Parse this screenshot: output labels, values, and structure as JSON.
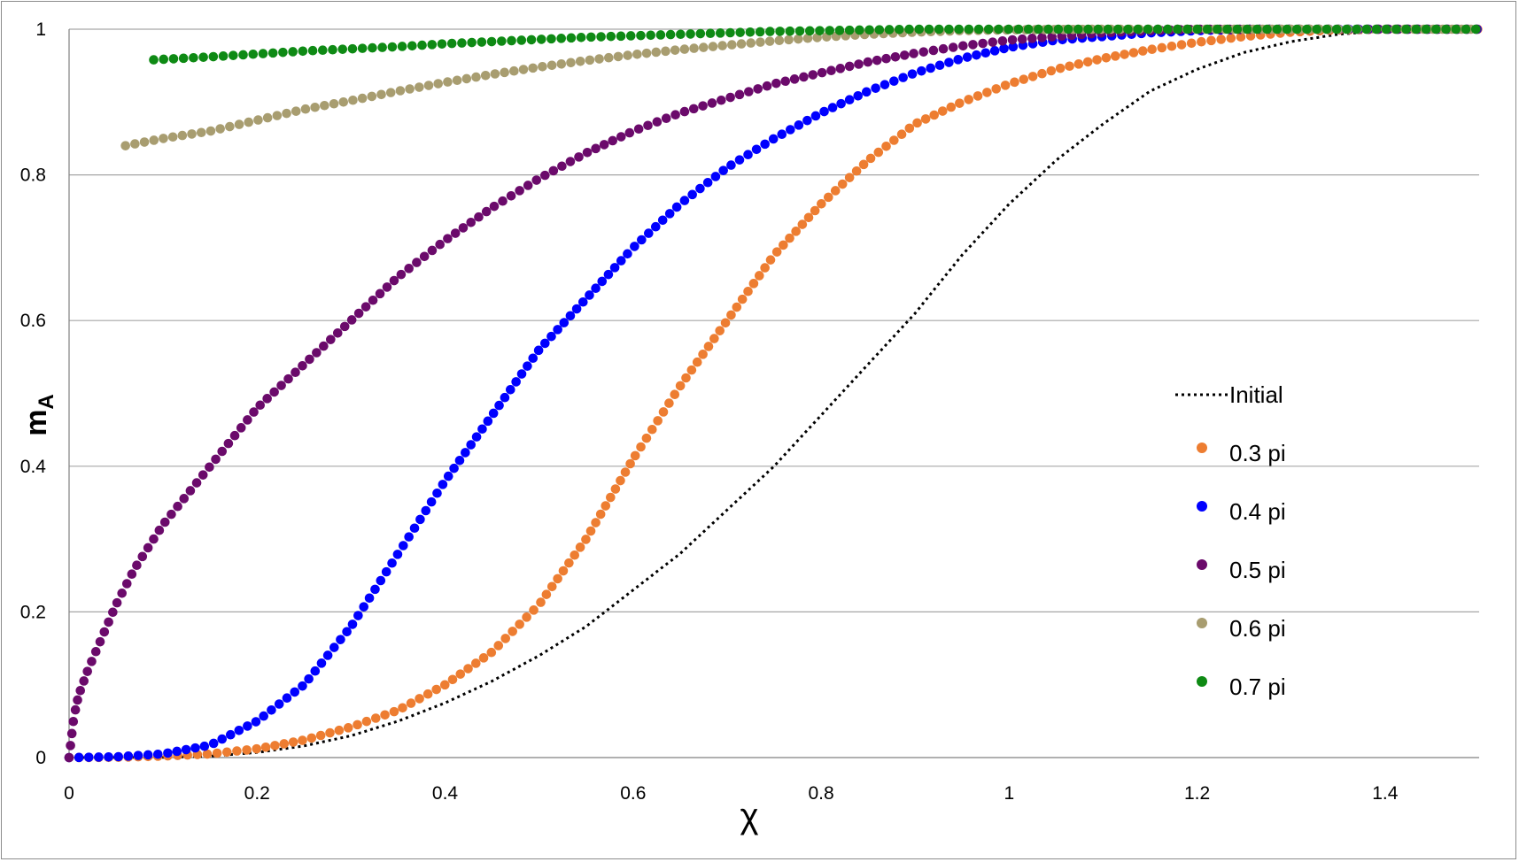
{
  "chart_data": {
    "type": "scatter",
    "title": "",
    "xlabel": "χ",
    "ylabel_main": "m",
    "ylabel_sub": "A",
    "xlim": [
      0,
      1.5
    ],
    "ylim": [
      0,
      1
    ],
    "xticks": [
      0,
      0.2,
      0.4,
      0.6,
      0.8,
      1,
      1.2,
      1.4
    ],
    "xtick_labels": [
      "0",
      "0.2",
      "0.4",
      "0.6",
      "0.8",
      "1",
      "1.2",
      "1.4"
    ],
    "yticks": [
      0,
      0.2,
      0.4,
      0.6,
      0.8,
      1
    ],
    "ytick_labels": [
      "0",
      "0.2",
      "0.4",
      "0.6",
      "0.8",
      "1"
    ],
    "grid": "horizontal",
    "legend_position": "right",
    "series": [
      {
        "name": "Initial",
        "style": "dotted-line",
        "color": "#000000",
        "points": [
          [
            0,
            0
          ],
          [
            0.1,
            0.0003
          ],
          [
            0.15,
            0.002
          ],
          [
            0.2,
            0.007
          ],
          [
            0.25,
            0.016
          ],
          [
            0.3,
            0.03
          ],
          [
            0.35,
            0.05
          ],
          [
            0.4,
            0.075
          ],
          [
            0.45,
            0.105
          ],
          [
            0.5,
            0.14
          ],
          [
            0.55,
            0.18
          ],
          [
            0.6,
            0.23
          ],
          [
            0.65,
            0.28
          ],
          [
            0.7,
            0.34
          ],
          [
            0.75,
            0.4
          ],
          [
            0.8,
            0.47
          ],
          [
            0.85,
            0.54
          ],
          [
            0.9,
            0.61
          ],
          [
            0.95,
            0.69
          ],
          [
            1.0,
            0.76
          ],
          [
            1.05,
            0.82
          ],
          [
            1.1,
            0.87
          ],
          [
            1.15,
            0.915
          ],
          [
            1.2,
            0.945
          ],
          [
            1.25,
            0.968
          ],
          [
            1.3,
            0.983
          ],
          [
            1.35,
            0.993
          ],
          [
            1.4,
            0.998
          ],
          [
            1.45,
            1.0
          ],
          [
            1.5,
            1.0
          ]
        ]
      },
      {
        "name": "0.3 pi",
        "style": "dots",
        "color": "#ed7d31",
        "points": [
          [
            0,
            0
          ],
          [
            0.05,
            0.0003
          ],
          [
            0.1,
            0.002
          ],
          [
            0.15,
            0.005
          ],
          [
            0.2,
            0.012
          ],
          [
            0.25,
            0.024
          ],
          [
            0.3,
            0.042
          ],
          [
            0.35,
            0.065
          ],
          [
            0.4,
            0.1
          ],
          [
            0.45,
            0.145
          ],
          [
            0.5,
            0.21
          ],
          [
            0.55,
            0.3
          ],
          [
            0.6,
            0.41
          ],
          [
            0.65,
            0.51
          ],
          [
            0.7,
            0.6
          ],
          [
            0.75,
            0.69
          ],
          [
            0.8,
            0.76
          ],
          [
            0.85,
            0.82
          ],
          [
            0.9,
            0.87
          ],
          [
            0.95,
            0.9
          ],
          [
            1.0,
            0.925
          ],
          [
            1.05,
            0.945
          ],
          [
            1.1,
            0.96
          ],
          [
            1.15,
            0.972
          ],
          [
            1.2,
            0.982
          ],
          [
            1.25,
            0.99
          ],
          [
            1.3,
            0.996
          ],
          [
            1.35,
            0.999
          ],
          [
            1.4,
            1.0
          ],
          [
            1.45,
            1.0
          ],
          [
            1.5,
            1.0
          ]
        ]
      },
      {
        "name": "0.4 pi",
        "style": "dots",
        "color": "#0000ff",
        "points": [
          [
            0,
            0
          ],
          [
            0.05,
            0.001
          ],
          [
            0.1,
            0.005
          ],
          [
            0.15,
            0.017
          ],
          [
            0.2,
            0.05
          ],
          [
            0.25,
            0.1
          ],
          [
            0.3,
            0.18
          ],
          [
            0.35,
            0.28
          ],
          [
            0.4,
            0.38
          ],
          [
            0.45,
            0.47
          ],
          [
            0.5,
            0.56
          ],
          [
            0.55,
            0.63
          ],
          [
            0.6,
            0.7
          ],
          [
            0.65,
            0.76
          ],
          [
            0.7,
            0.81
          ],
          [
            0.75,
            0.85
          ],
          [
            0.8,
            0.885
          ],
          [
            0.85,
            0.915
          ],
          [
            0.9,
            0.94
          ],
          [
            0.95,
            0.96
          ],
          [
            1.0,
            0.975
          ],
          [
            1.05,
            0.985
          ],
          [
            1.1,
            0.99
          ],
          [
            1.15,
            0.995
          ],
          [
            1.2,
            0.998
          ],
          [
            1.25,
            1.0
          ],
          [
            1.3,
            1.0
          ],
          [
            1.35,
            1.0
          ],
          [
            1.4,
            1.0
          ],
          [
            1.45,
            1.0
          ],
          [
            1.5,
            1.0
          ]
        ]
      },
      {
        "name": "0.5 pi",
        "style": "dots",
        "color": "#6b0a6b",
        "points": [
          [
            0,
            0
          ],
          [
            0.005,
            0.055
          ],
          [
            0.01,
            0.085
          ],
          [
            0.02,
            0.12
          ],
          [
            0.03,
            0.15
          ],
          [
            0.05,
            0.21
          ],
          [
            0.07,
            0.26
          ],
          [
            0.1,
            0.32
          ],
          [
            0.15,
            0.4
          ],
          [
            0.2,
            0.48
          ],
          [
            0.25,
            0.54
          ],
          [
            0.3,
            0.6
          ],
          [
            0.35,
            0.66
          ],
          [
            0.4,
            0.71
          ],
          [
            0.45,
            0.755
          ],
          [
            0.5,
            0.795
          ],
          [
            0.55,
            0.83
          ],
          [
            0.6,
            0.86
          ],
          [
            0.65,
            0.885
          ],
          [
            0.7,
            0.905
          ],
          [
            0.75,
            0.925
          ],
          [
            0.8,
            0.94
          ],
          [
            0.85,
            0.955
          ],
          [
            0.9,
            0.967
          ],
          [
            0.95,
            0.977
          ],
          [
            1.0,
            0.985
          ],
          [
            1.05,
            0.99
          ],
          [
            1.1,
            0.995
          ],
          [
            1.15,
            0.998
          ],
          [
            1.2,
            1.0
          ],
          [
            1.3,
            1.0
          ],
          [
            1.4,
            1.0
          ],
          [
            1.5,
            1.0
          ]
        ]
      },
      {
        "name": "0.6 pi",
        "style": "dots",
        "color": "#a89d70",
        "points": [
          [
            0.06,
            0.84
          ],
          [
            0.1,
            0.85
          ],
          [
            0.15,
            0.86
          ],
          [
            0.2,
            0.875
          ],
          [
            0.25,
            0.89
          ],
          [
            0.3,
            0.902
          ],
          [
            0.35,
            0.915
          ],
          [
            0.4,
            0.927
          ],
          [
            0.45,
            0.938
          ],
          [
            0.5,
            0.948
          ],
          [
            0.55,
            0.957
          ],
          [
            0.6,
            0.965
          ],
          [
            0.65,
            0.972
          ],
          [
            0.7,
            0.978
          ],
          [
            0.75,
            0.984
          ],
          [
            0.8,
            0.989
          ],
          [
            0.85,
            0.993
          ],
          [
            0.9,
            0.996
          ],
          [
            0.95,
            0.998
          ],
          [
            1.0,
            0.999
          ],
          [
            1.1,
            1.0
          ],
          [
            1.2,
            1.0
          ],
          [
            1.3,
            1.0
          ],
          [
            1.4,
            1.0
          ],
          [
            1.5,
            1.0
          ]
        ]
      },
      {
        "name": "0.7 pi",
        "style": "dots",
        "color": "#0e8a14",
        "points": [
          [
            0.09,
            0.958
          ],
          [
            0.15,
            0.962
          ],
          [
            0.2,
            0.966
          ],
          [
            0.25,
            0.97
          ],
          [
            0.3,
            0.973
          ],
          [
            0.35,
            0.976
          ],
          [
            0.4,
            0.98
          ],
          [
            0.45,
            0.983
          ],
          [
            0.5,
            0.986
          ],
          [
            0.55,
            0.989
          ],
          [
            0.6,
            0.991
          ],
          [
            0.65,
            0.993
          ],
          [
            0.7,
            0.995
          ],
          [
            0.75,
            0.997
          ],
          [
            0.8,
            0.998
          ],
          [
            0.85,
            0.999
          ],
          [
            0.9,
            1.0
          ],
          [
            1.0,
            1.0
          ],
          [
            1.1,
            1.0
          ],
          [
            1.2,
            1.0
          ],
          [
            1.3,
            1.0
          ],
          [
            1.4,
            1.0
          ],
          [
            1.5,
            1.0
          ]
        ]
      }
    ]
  }
}
